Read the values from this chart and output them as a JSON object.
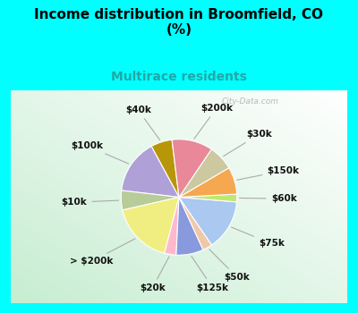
{
  "title": "Income distribution in Broomfield, CO\n(%)",
  "subtitle": "Multirace residents",
  "title_fontsize": 11,
  "subtitle_fontsize": 10,
  "bg_color": "#00FFFF",
  "labels": [
    "$40k",
    "$100k",
    "$10k",
    "> $200k",
    "$20k",
    "$125k",
    "$50k",
    "$75k",
    "$60k",
    "$150k",
    "$30k",
    "$200k"
  ],
  "values": [
    5.5,
    14.0,
    5.0,
    16.0,
    3.0,
    7.0,
    2.5,
    13.0,
    2.0,
    7.0,
    6.5,
    10.5
  ],
  "colors": [
    "#b8960a",
    "#b0a0d8",
    "#b8cc99",
    "#f0ee80",
    "#ffb8cc",
    "#8899dd",
    "#f0c8a8",
    "#aac8f0",
    "#c0e870",
    "#f5a850",
    "#ccc8a0",
    "#e88898"
  ],
  "startangle": 97,
  "wedge_linewidth": 0.8,
  "wedge_edgecolor": "#ffffff",
  "label_fontsize": 7.5,
  "watermark": "City-Data.com"
}
